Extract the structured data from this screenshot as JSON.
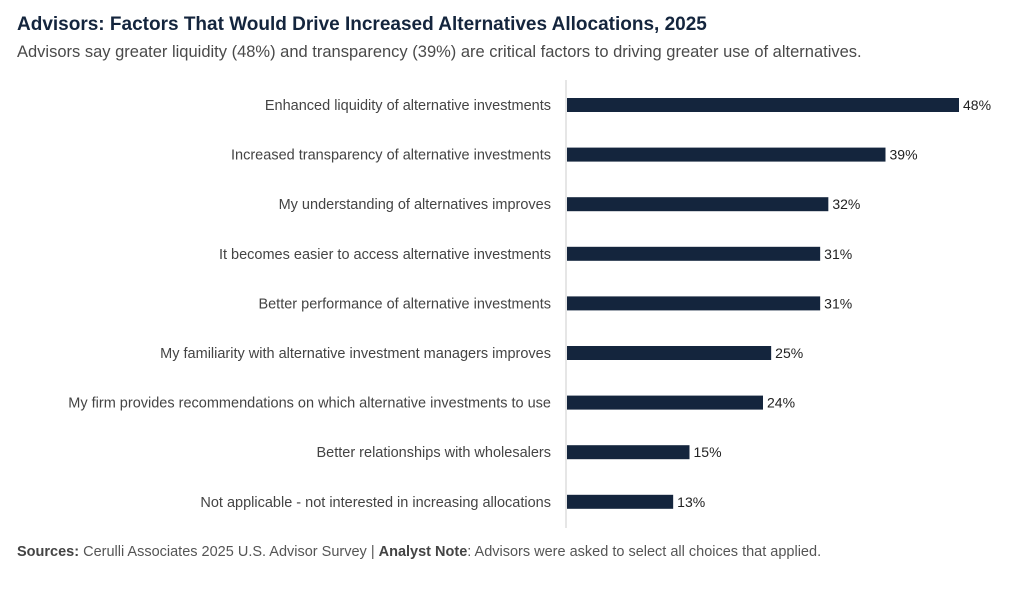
{
  "title": "Advisors: Factors That Would Drive Increased Alternatives Allocations, 2025",
  "subtitle": "Advisors say greater liquidity (48%) and transparency (39%) are critical factors to driving greater use of alternatives.",
  "footer": {
    "sources_label": "Sources:",
    "sources_text": "Cerulli Associates 2025 U.S. Advisor Survey",
    "separator": "|",
    "note_label": "Analyst Note",
    "note_text": ": Advisors were asked to select all choices that applied."
  },
  "colors": {
    "bar": "#14253d",
    "axis": "#cccccc"
  },
  "chart_data": {
    "type": "bar",
    "orientation": "horizontal",
    "categories": [
      "Enhanced liquidity of alternative investments",
      "Increased transparency of alternative investments",
      "My understanding of alternatives improves",
      "It becomes easier to access alternative investments",
      "Better performance of alternative investments",
      "My familiarity with alternative investment managers improves",
      "My firm provides recommendations on which alternative investments to use",
      "Better relationships with wholesalers",
      "Not applicable - not interested in increasing allocations"
    ],
    "values": [
      48,
      39,
      32,
      31,
      31,
      25,
      24,
      15,
      13
    ],
    "value_labels": [
      "48%",
      "39%",
      "32%",
      "31%",
      "31%",
      "25%",
      "24%",
      "15%",
      "13%"
    ],
    "xlim": [
      0,
      48
    ],
    "grid": false,
    "legend": "none"
  }
}
